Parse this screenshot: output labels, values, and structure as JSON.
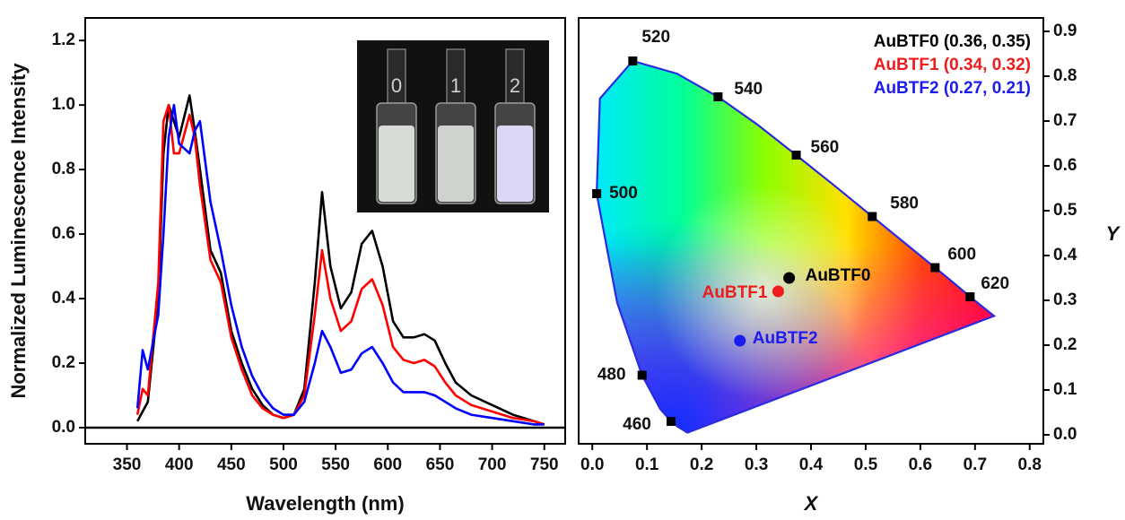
{
  "chart_data": [
    {
      "type": "line",
      "xlabel": "Wavelength (nm)",
      "ylabel": "Normalized Luminescence Intensity",
      "x": [
        360,
        365,
        370,
        380,
        385,
        390,
        395,
        400,
        410,
        415,
        420,
        430,
        440,
        450,
        460,
        470,
        480,
        490,
        500,
        510,
        520,
        530,
        537,
        545,
        555,
        565,
        575,
        585,
        595,
        605,
        615,
        625,
        635,
        645,
        655,
        665,
        680,
        700,
        720,
        740,
        750
      ],
      "series": [
        {
          "color": "#000000",
          "values": [
            0.02,
            0.05,
            0.08,
            0.4,
            0.85,
            1.0,
            0.95,
            0.9,
            1.03,
            0.92,
            0.8,
            0.55,
            0.48,
            0.3,
            0.2,
            0.12,
            0.07,
            0.04,
            0.03,
            0.04,
            0.12,
            0.45,
            0.73,
            0.5,
            0.37,
            0.42,
            0.57,
            0.61,
            0.5,
            0.33,
            0.28,
            0.28,
            0.29,
            0.27,
            0.2,
            0.14,
            0.1,
            0.07,
            0.04,
            0.02,
            0.01
          ]
        },
        {
          "color": "#ff0000",
          "values": [
            0.04,
            0.12,
            0.1,
            0.45,
            0.95,
            1.0,
            0.85,
            0.85,
            0.97,
            0.9,
            0.75,
            0.52,
            0.45,
            0.28,
            0.18,
            0.1,
            0.06,
            0.04,
            0.03,
            0.04,
            0.1,
            0.35,
            0.55,
            0.4,
            0.3,
            0.33,
            0.43,
            0.46,
            0.38,
            0.25,
            0.21,
            0.2,
            0.21,
            0.19,
            0.14,
            0.1,
            0.07,
            0.05,
            0.03,
            0.02,
            0.01
          ]
        },
        {
          "color": "#0000ff",
          "values": [
            0.06,
            0.24,
            0.18,
            0.35,
            0.6,
            0.9,
            1.0,
            0.88,
            0.85,
            0.92,
            0.95,
            0.7,
            0.55,
            0.38,
            0.25,
            0.16,
            0.1,
            0.06,
            0.04,
            0.04,
            0.08,
            0.2,
            0.3,
            0.25,
            0.17,
            0.18,
            0.23,
            0.25,
            0.2,
            0.14,
            0.11,
            0.11,
            0.11,
            0.1,
            0.08,
            0.06,
            0.04,
            0.03,
            0.02,
            0.01,
            0.01
          ]
        }
      ],
      "xlim": [
        310,
        770
      ],
      "xticks": [
        350,
        400,
        450,
        500,
        550,
        600,
        650,
        700,
        750
      ],
      "ylim": [
        -0.05,
        1.27
      ],
      "yticks": [
        {
          "value": 0,
          "label": "0.0"
        },
        0.2,
        0.4,
        0.6,
        0.8,
        {
          "value": 1,
          "label": "1.0"
        },
        1.2
      ],
      "hline": 0,
      "inset_labels": [
        "0",
        "1",
        "2"
      ]
    },
    {
      "type": "scatter",
      "xlabel": "X",
      "ylabel": "Y",
      "xlim": [
        -0.025,
        0.825
      ],
      "xticks": [
        {
          "value": 0,
          "label": "0.0"
        },
        0.1,
        0.2,
        0.3,
        0.4,
        0.5,
        0.6,
        0.7,
        0.8
      ],
      "ylim": [
        -0.02,
        0.93
      ],
      "yticks": [
        {
          "value": 0,
          "label": "0.0"
        },
        0.1,
        0.2,
        0.3,
        0.4,
        0.5,
        0.6,
        0.7,
        0.8,
        0.9
      ],
      "locus": {
        "color": "#2a2ae0",
        "labels": [
          null,
          null,
          "460",
          null,
          "480",
          null,
          "500",
          null,
          "520",
          null,
          "540",
          null,
          "560",
          null,
          "580",
          null,
          "600",
          null,
          "620",
          null
        ],
        "x": [
          0.1741,
          0.1566,
          0.144,
          0.1241,
          0.091,
          0.0454,
          0.008,
          0.0139,
          0.074,
          0.1547,
          0.23,
          0.3016,
          0.373,
          0.4441,
          0.512,
          0.5752,
          0.627,
          0.6658,
          0.691,
          0.7347
        ],
        "y": [
          0.005,
          0.0177,
          0.03,
          0.0578,
          0.133,
          0.295,
          0.538,
          0.7502,
          0.834,
          0.8059,
          0.754,
          0.6923,
          0.624,
          0.5547,
          0.487,
          0.4242,
          0.373,
          0.334,
          0.308,
          0.2653
        ]
      },
      "series": [
        {
          "name": "AuBTF0",
          "label": "AuBTF0 (0.36, 0.35)",
          "color": "#000000",
          "x": [
            0.36
          ],
          "y": [
            0.35
          ]
        },
        {
          "name": "AuBTF1",
          "label": "AuBTF1 (0.34, 0.32)",
          "color": "#ee1c1c",
          "x": [
            0.34
          ],
          "y": [
            0.32
          ]
        },
        {
          "name": "AuBTF2",
          "label": "AuBTF2 (0.27, 0.21)",
          "color": "#1c1cee",
          "x": [
            0.27
          ],
          "y": [
            0.21
          ]
        }
      ]
    }
  ]
}
